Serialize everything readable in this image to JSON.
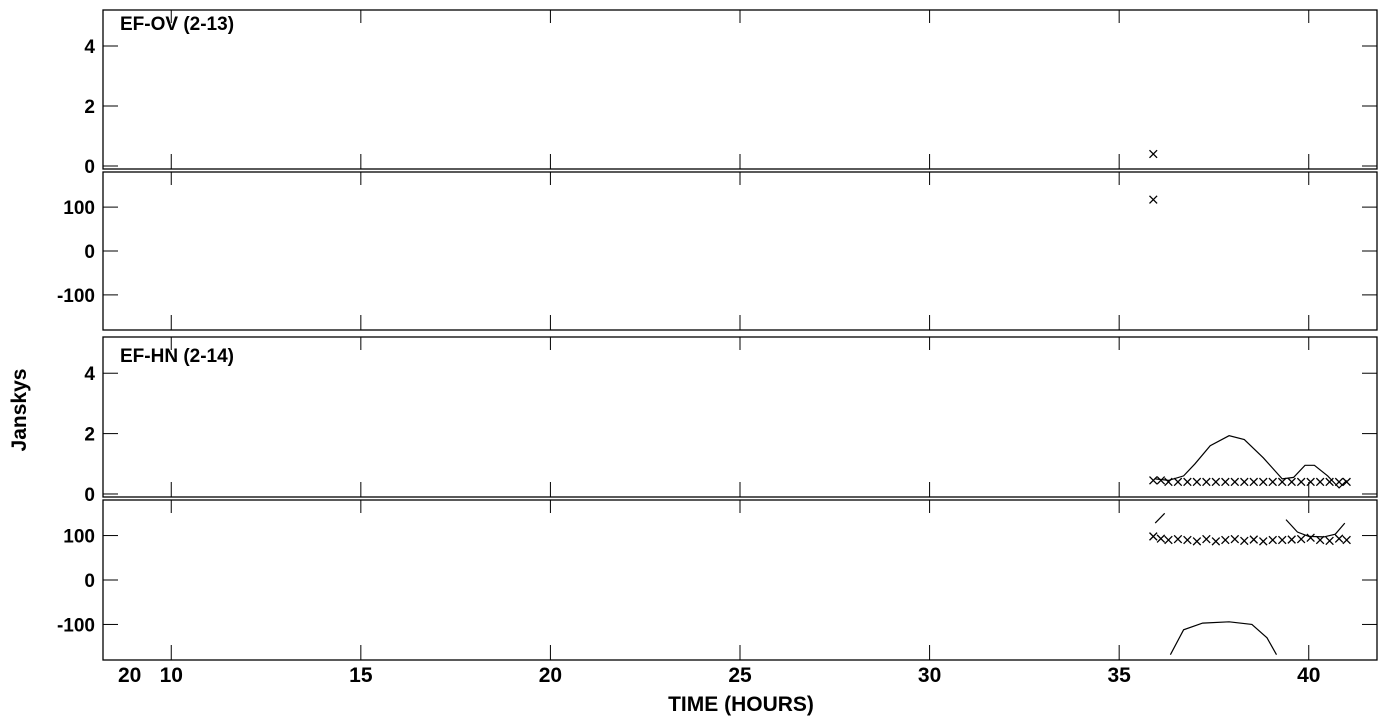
{
  "chart_data": {
    "type": "scatter",
    "xlabel": "TIME (HOURS)",
    "ylabel": "Janskys",
    "x_ticks": [
      10,
      15,
      20,
      25,
      30,
      35,
      40
    ],
    "day_label": "20",
    "xlim": [
      8.2,
      41.8
    ],
    "baselines": [
      {
        "name": "EF-OV (2-13)",
        "amplitude": {
          "ylim": [
            -0.1,
            5.2
          ],
          "ticks": [
            0,
            2,
            4
          ],
          "model": [],
          "data": [
            {
              "x": 35.9,
              "y": 0.4
            }
          ]
        },
        "phase": {
          "ylim": [
            -180,
            180
          ],
          "ticks": [
            -100,
            0,
            100
          ],
          "model": [],
          "data": [
            {
              "x": 35.9,
              "y": 117
            }
          ]
        }
      },
      {
        "name": "EF-HN (2-14)",
        "amplitude": {
          "ylim": [
            -0.1,
            5.2
          ],
          "ticks": [
            0,
            2,
            4
          ],
          "model": [
            [
              [
                35.95,
                0.5
              ],
              [
                36.3,
                0.45
              ],
              [
                36.7,
                0.6
              ],
              [
                37.0,
                1.0
              ],
              [
                37.4,
                1.6
              ],
              [
                37.9,
                1.93
              ],
              [
                38.3,
                1.8
              ],
              [
                38.8,
                1.2
              ],
              [
                39.3,
                0.5
              ],
              [
                39.6,
                0.55
              ],
              [
                39.9,
                0.95
              ],
              [
                40.15,
                0.95
              ],
              [
                40.5,
                0.6
              ],
              [
                40.8,
                0.2
              ],
              [
                41.0,
                0.45
              ]
            ]
          ],
          "data": [
            {
              "x": 35.9,
              "y": 0.45
            },
            {
              "x": 36.1,
              "y": 0.45
            },
            {
              "x": 36.3,
              "y": 0.4
            },
            {
              "x": 36.55,
              "y": 0.4
            },
            {
              "x": 36.8,
              "y": 0.4
            },
            {
              "x": 37.05,
              "y": 0.4
            },
            {
              "x": 37.3,
              "y": 0.4
            },
            {
              "x": 37.55,
              "y": 0.4
            },
            {
              "x": 37.8,
              "y": 0.4
            },
            {
              "x": 38.05,
              "y": 0.4
            },
            {
              "x": 38.3,
              "y": 0.4
            },
            {
              "x": 38.55,
              "y": 0.4
            },
            {
              "x": 38.8,
              "y": 0.4
            },
            {
              "x": 39.05,
              "y": 0.4
            },
            {
              "x": 39.3,
              "y": 0.4
            },
            {
              "x": 39.55,
              "y": 0.4
            },
            {
              "x": 39.8,
              "y": 0.4
            },
            {
              "x": 40.05,
              "y": 0.4
            },
            {
              "x": 40.3,
              "y": 0.4
            },
            {
              "x": 40.55,
              "y": 0.4
            },
            {
              "x": 40.8,
              "y": 0.4
            },
            {
              "x": 41.0,
              "y": 0.4
            }
          ]
        },
        "phase": {
          "ylim": [
            -180,
            180
          ],
          "ticks": [
            -100,
            0,
            100
          ],
          "model": [
            [
              [
                35.95,
                128
              ],
              [
                36.2,
                150
              ]
            ],
            [
              [
                39.4,
                136
              ],
              [
                39.7,
                108
              ],
              [
                40.0,
                98
              ],
              [
                40.4,
                97
              ],
              [
                40.7,
                103
              ],
              [
                40.95,
                128
              ]
            ],
            [
              [
                36.35,
                -168
              ],
              [
                36.7,
                -112
              ],
              [
                37.2,
                -97
              ],
              [
                37.9,
                -94
              ],
              [
                38.5,
                -100
              ],
              [
                38.9,
                -130
              ],
              [
                39.15,
                -168
              ]
            ]
          ],
          "data": [
            {
              "x": 35.9,
              "y": 98
            },
            {
              "x": 36.1,
              "y": 93
            },
            {
              "x": 36.3,
              "y": 90
            },
            {
              "x": 36.55,
              "y": 92
            },
            {
              "x": 36.8,
              "y": 90
            },
            {
              "x": 37.05,
              "y": 87
            },
            {
              "x": 37.3,
              "y": 92
            },
            {
              "x": 37.55,
              "y": 87
            },
            {
              "x": 37.8,
              "y": 90
            },
            {
              "x": 38.05,
              "y": 92
            },
            {
              "x": 38.3,
              "y": 88
            },
            {
              "x": 38.55,
              "y": 91
            },
            {
              "x": 38.8,
              "y": 87
            },
            {
              "x": 39.05,
              "y": 90
            },
            {
              "x": 39.3,
              "y": 90
            },
            {
              "x": 39.55,
              "y": 91
            },
            {
              "x": 39.8,
              "y": 92
            },
            {
              "x": 40.05,
              "y": 95
            },
            {
              "x": 40.3,
              "y": 90
            },
            {
              "x": 40.55,
              "y": 88
            },
            {
              "x": 40.8,
              "y": 93
            },
            {
              "x": 41.0,
              "y": 90
            }
          ]
        }
      }
    ]
  }
}
